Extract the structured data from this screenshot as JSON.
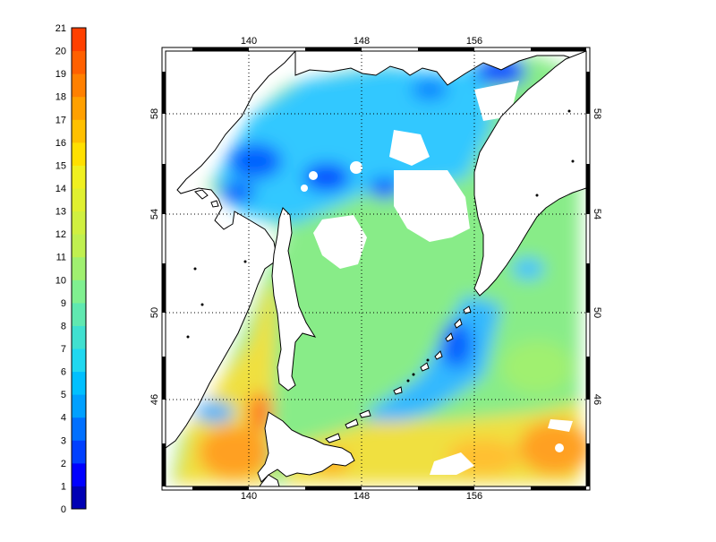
{
  "colorbar": {
    "ticks": [
      "0",
      "1",
      "2",
      "3",
      "4",
      "5",
      "6",
      "7",
      "8",
      "9",
      "10",
      "11",
      "12",
      "13",
      "14",
      "15",
      "16",
      "17",
      "18",
      "19",
      "20",
      "21"
    ],
    "colors": [
      "#0000b4",
      "#0000ff",
      "#0040ff",
      "#0070ff",
      "#00a0ff",
      "#00c0ff",
      "#20d8f0",
      "#40e0d0",
      "#60e8b0",
      "#80f090",
      "#a0f070",
      "#c0f050",
      "#d0f040",
      "#e0f030",
      "#f0f020",
      "#ffe000",
      "#ffc000",
      "#ffa000",
      "#ff8000",
      "#ff6000",
      "#ff4000"
    ]
  },
  "map": {
    "lon_ticks": [
      "140",
      "148",
      "156"
    ],
    "lat_ticks": [
      "58",
      "54",
      "50",
      "46"
    ]
  }
}
